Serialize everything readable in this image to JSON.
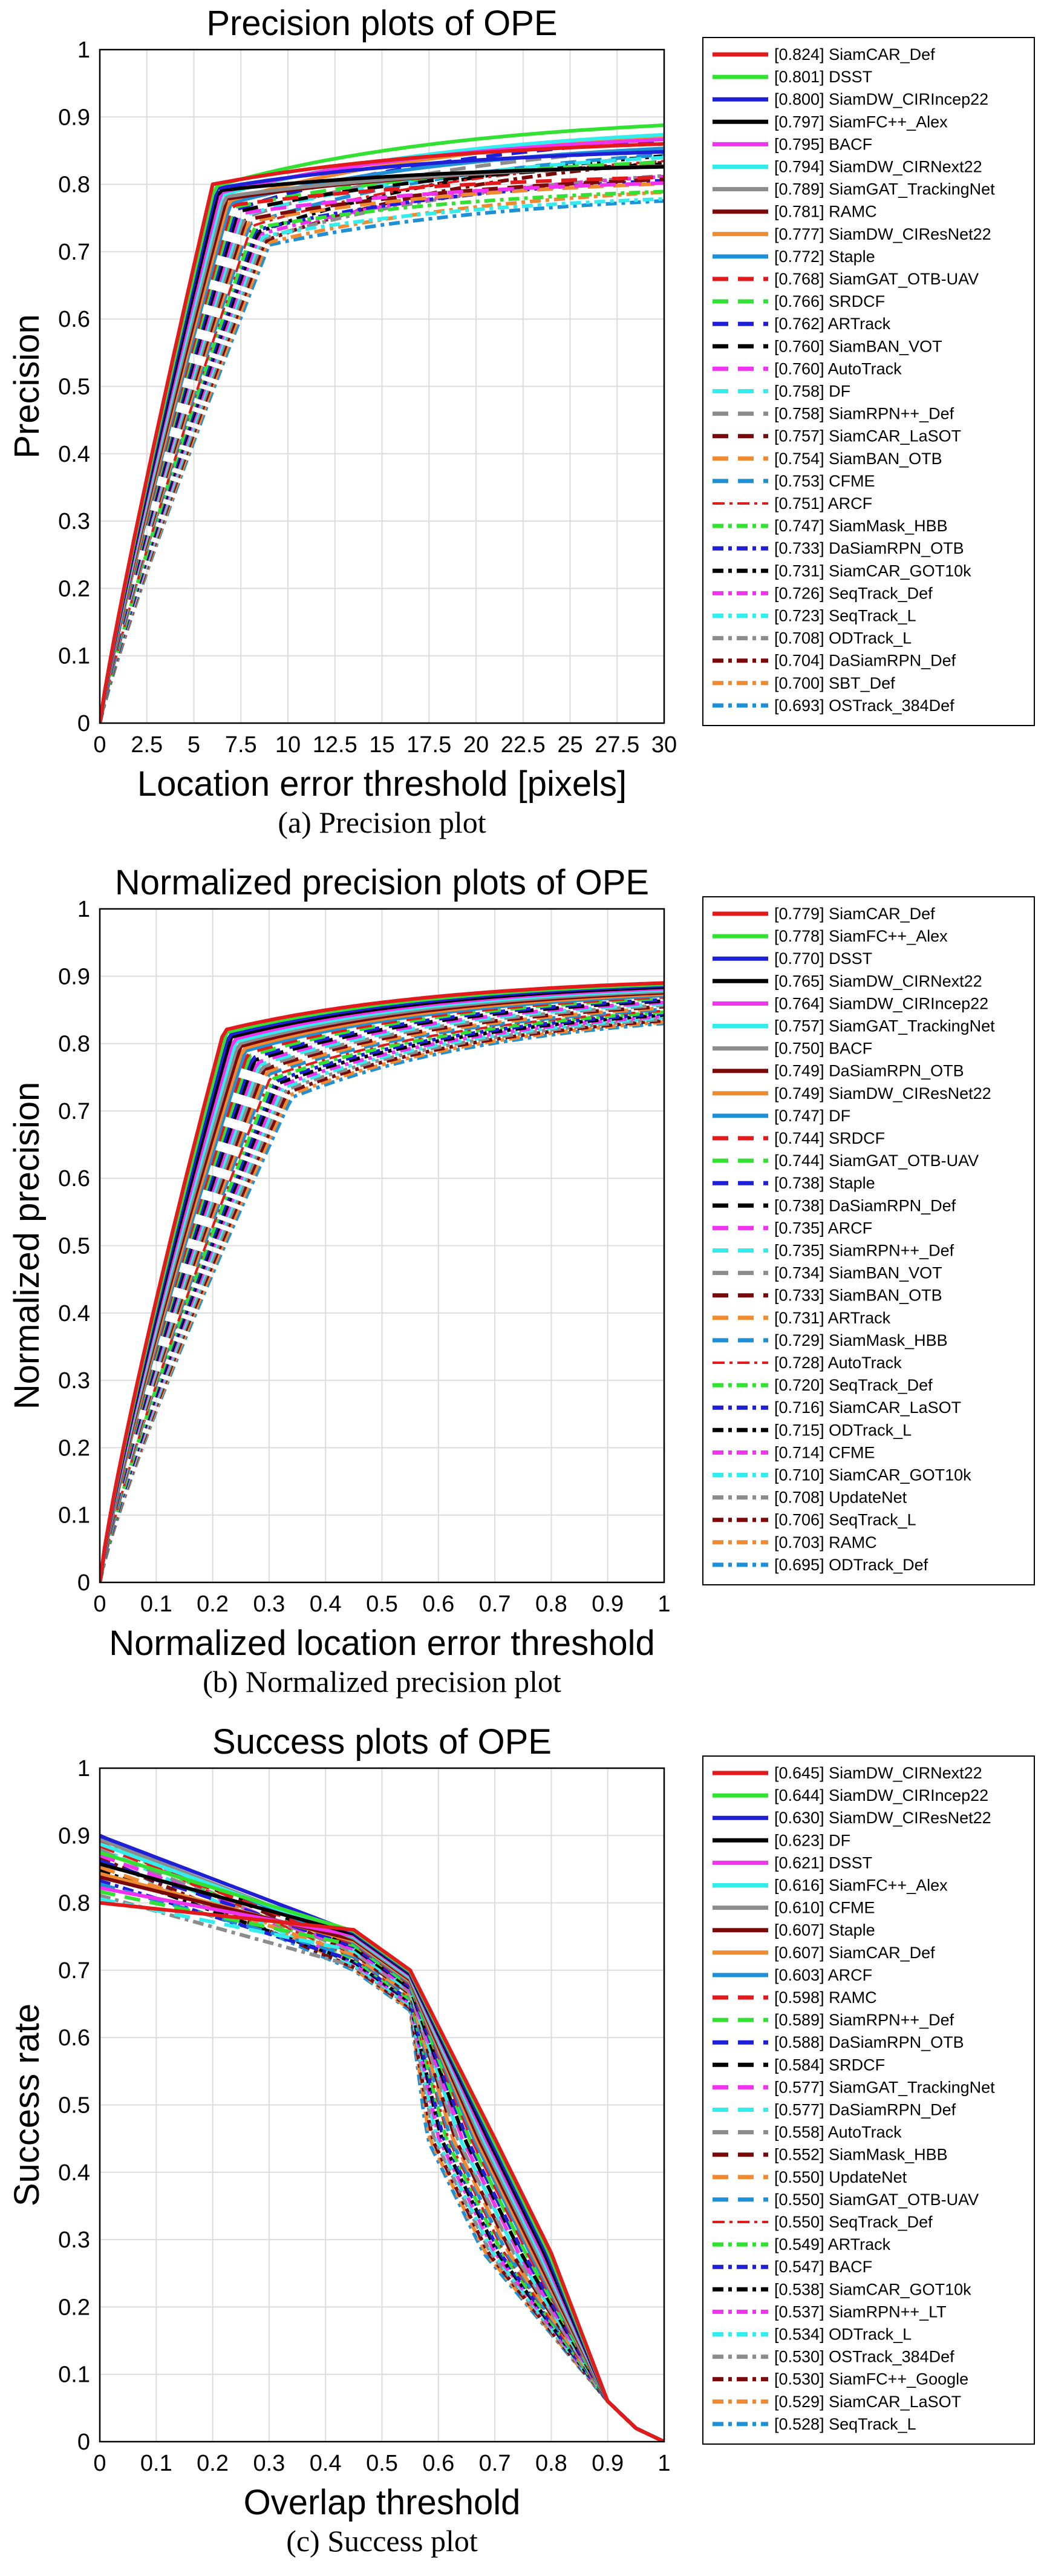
{
  "chart_data": [
    {
      "type": "line",
      "title": "Precision plots of OPE",
      "xlabel": "Location error threshold [pixels]",
      "ylabel": "Precision",
      "caption": "(a) Precision plot",
      "xlim": [
        0,
        30
      ],
      "ylim": [
        0,
        1
      ],
      "xticks": [
        "0",
        "2.5",
        "5",
        "7.5",
        "10",
        "12.5",
        "15",
        "17.5",
        "20",
        "22.5",
        "25",
        "27.5",
        "30"
      ],
      "yticks": [
        "0",
        "0.1",
        "0.2",
        "0.3",
        "0.4",
        "0.5",
        "0.6",
        "0.7",
        "0.8",
        "0.9",
        "1"
      ],
      "grid": true,
      "legend_position": "outside-right",
      "series": [
        {
          "legend": "[0.824] SiamCAR_Def",
          "score": 0.824,
          "color": "#e31a1c",
          "dash": "solid"
        },
        {
          "legend": "[0.801] DSST",
          "score": 0.801,
          "color": "#33e133",
          "dash": "solid"
        },
        {
          "legend": "[0.800] SiamDW_CIRIncep22",
          "score": 0.8,
          "color": "#1f1fd6",
          "dash": "solid"
        },
        {
          "legend": "[0.797] SiamFC++_Alex",
          "score": 0.797,
          "color": "#000000",
          "dash": "solid"
        },
        {
          "legend": "[0.795] BACF",
          "score": 0.795,
          "color": "#ef33ef",
          "dash": "solid"
        },
        {
          "legend": "[0.794] SiamDW_CIRNext22",
          "score": 0.794,
          "color": "#33eded",
          "dash": "solid"
        },
        {
          "legend": "[0.789] SiamGAT_TrackingNet",
          "score": 0.789,
          "color": "#8c8c8c",
          "dash": "solid"
        },
        {
          "legend": "[0.781] RAMC",
          "score": 0.781,
          "color": "#7a0a0a",
          "dash": "solid"
        },
        {
          "legend": "[0.777] SiamDW_CIResNet22",
          "score": 0.777,
          "color": "#f08a30",
          "dash": "solid"
        },
        {
          "legend": "[0.772] Staple",
          "score": 0.772,
          "color": "#1f8fd6",
          "dash": "solid"
        },
        {
          "legend": "[0.768] SiamGAT_OTB-UAV",
          "score": 0.768,
          "color": "#e31a1c",
          "dash": "dash"
        },
        {
          "legend": "[0.766] SRDCF",
          "score": 0.766,
          "color": "#33e133",
          "dash": "dash"
        },
        {
          "legend": "[0.762] ARTrack",
          "score": 0.762,
          "color": "#1f1fd6",
          "dash": "dash"
        },
        {
          "legend": "[0.760] SiamBAN_VOT",
          "score": 0.76,
          "color": "#000000",
          "dash": "dash"
        },
        {
          "legend": "[0.760] AutoTrack",
          "score": 0.76,
          "color": "#ef33ef",
          "dash": "dash"
        },
        {
          "legend": "[0.758] DF",
          "score": 0.758,
          "color": "#33eded",
          "dash": "dash"
        },
        {
          "legend": "[0.758] SiamRPN++_Def",
          "score": 0.758,
          "color": "#8c8c8c",
          "dash": "dash"
        },
        {
          "legend": "[0.757] SiamCAR_LaSOT",
          "score": 0.757,
          "color": "#7a0a0a",
          "dash": "dash"
        },
        {
          "legend": "[0.754] SiamBAN_OTB",
          "score": 0.754,
          "color": "#f08a30",
          "dash": "dash"
        },
        {
          "legend": "[0.753] CFME",
          "score": 0.753,
          "color": "#1f8fd6",
          "dash": "dash"
        },
        {
          "legend": "[0.751] ARCF",
          "score": 0.751,
          "color": "#e31a1c",
          "dash": "dashdot-thin"
        },
        {
          "legend": "[0.747] SiamMask_HBB",
          "score": 0.747,
          "color": "#33e133",
          "dash": "dashdot"
        },
        {
          "legend": "[0.733] DaSiamRPN_OTB",
          "score": 0.733,
          "color": "#1f1fd6",
          "dash": "dashdot"
        },
        {
          "legend": "[0.731] SiamCAR_GOT10k",
          "score": 0.731,
          "color": "#000000",
          "dash": "dashdot"
        },
        {
          "legend": "[0.726] SeqTrack_Def",
          "score": 0.726,
          "color": "#ef33ef",
          "dash": "dashdot"
        },
        {
          "legend": "[0.723] SeqTrack_L",
          "score": 0.723,
          "color": "#33eded",
          "dash": "dashdot"
        },
        {
          "legend": "[0.708] ODTrack_L",
          "score": 0.708,
          "color": "#8c8c8c",
          "dash": "dashdot"
        },
        {
          "legend": "[0.704] DaSiamRPN_Def",
          "score": 0.704,
          "color": "#7a0a0a",
          "dash": "dashdot"
        },
        {
          "legend": "[0.700] SBT_Def",
          "score": 0.7,
          "color": "#f08a30",
          "dash": "dashdot"
        },
        {
          "legend": "[0.693] OSTrack_384Def",
          "score": 0.693,
          "color": "#1f8fd6",
          "dash": "dashdot"
        }
      ]
    },
    {
      "type": "line",
      "title": "Normalized precision plots of OPE",
      "xlabel": "Normalized location error threshold",
      "ylabel": "Normalized precision",
      "caption": "(b) Normalized precision plot",
      "xlim": [
        0,
        1
      ],
      "ylim": [
        0,
        1
      ],
      "xticks": [
        "0",
        "0.1",
        "0.2",
        "0.3",
        "0.4",
        "0.5",
        "0.6",
        "0.7",
        "0.8",
        "0.9",
        "1"
      ],
      "yticks": [
        "0",
        "0.1",
        "0.2",
        "0.3",
        "0.4",
        "0.5",
        "0.6",
        "0.7",
        "0.8",
        "0.9",
        "1"
      ],
      "grid": true,
      "legend_position": "outside-right",
      "series": [
        {
          "legend": "[0.779] SiamCAR_Def",
          "score": 0.779,
          "color": "#e31a1c",
          "dash": "solid"
        },
        {
          "legend": "[0.778] SiamFC++_Alex",
          "score": 0.778,
          "color": "#33e133",
          "dash": "solid"
        },
        {
          "legend": "[0.770] DSST",
          "score": 0.77,
          "color": "#1f1fd6",
          "dash": "solid"
        },
        {
          "legend": "[0.765] SiamDW_CIRNext22",
          "score": 0.765,
          "color": "#000000",
          "dash": "solid"
        },
        {
          "legend": "[0.764] SiamDW_CIRIncep22",
          "score": 0.764,
          "color": "#ef33ef",
          "dash": "solid"
        },
        {
          "legend": "[0.757] SiamGAT_TrackingNet",
          "score": 0.757,
          "color": "#33eded",
          "dash": "solid"
        },
        {
          "legend": "[0.750] BACF",
          "score": 0.75,
          "color": "#8c8c8c",
          "dash": "solid"
        },
        {
          "legend": "[0.749] DaSiamRPN_OTB",
          "score": 0.749,
          "color": "#7a0a0a",
          "dash": "solid"
        },
        {
          "legend": "[0.749] SiamDW_CIResNet22",
          "score": 0.749,
          "color": "#f08a30",
          "dash": "solid"
        },
        {
          "legend": "[0.747] DF",
          "score": 0.747,
          "color": "#1f8fd6",
          "dash": "solid"
        },
        {
          "legend": "[0.744] SRDCF",
          "score": 0.744,
          "color": "#e31a1c",
          "dash": "dash"
        },
        {
          "legend": "[0.744] SiamGAT_OTB-UAV",
          "score": 0.744,
          "color": "#33e133",
          "dash": "dash"
        },
        {
          "legend": "[0.738] Staple",
          "score": 0.738,
          "color": "#1f1fd6",
          "dash": "dash"
        },
        {
          "legend": "[0.738] DaSiamRPN_Def",
          "score": 0.738,
          "color": "#000000",
          "dash": "dash"
        },
        {
          "legend": "[0.735] ARCF",
          "score": 0.735,
          "color": "#ef33ef",
          "dash": "dash"
        },
        {
          "legend": "[0.735] SiamRPN++_Def",
          "score": 0.735,
          "color": "#33eded",
          "dash": "dash"
        },
        {
          "legend": "[0.734] SiamBAN_VOT",
          "score": 0.734,
          "color": "#8c8c8c",
          "dash": "dash"
        },
        {
          "legend": "[0.733] SiamBAN_OTB",
          "score": 0.733,
          "color": "#7a0a0a",
          "dash": "dash"
        },
        {
          "legend": "[0.731] ARTrack",
          "score": 0.731,
          "color": "#f08a30",
          "dash": "dash"
        },
        {
          "legend": "[0.729] SiamMask_HBB",
          "score": 0.729,
          "color": "#1f8fd6",
          "dash": "dash"
        },
        {
          "legend": "[0.728] AutoTrack",
          "score": 0.728,
          "color": "#e31a1c",
          "dash": "dashdot-thin"
        },
        {
          "legend": "[0.720] SeqTrack_Def",
          "score": 0.72,
          "color": "#33e133",
          "dash": "dashdot"
        },
        {
          "legend": "[0.716] SiamCAR_LaSOT",
          "score": 0.716,
          "color": "#1f1fd6",
          "dash": "dashdot"
        },
        {
          "legend": "[0.715] ODTrack_L",
          "score": 0.715,
          "color": "#000000",
          "dash": "dashdot"
        },
        {
          "legend": "[0.714] CFME",
          "score": 0.714,
          "color": "#ef33ef",
          "dash": "dashdot"
        },
        {
          "legend": "[0.710] SiamCAR_GOT10k",
          "score": 0.71,
          "color": "#33eded",
          "dash": "dashdot"
        },
        {
          "legend": "[0.708] UpdateNet",
          "score": 0.708,
          "color": "#8c8c8c",
          "dash": "dashdot"
        },
        {
          "legend": "[0.706] SeqTrack_L",
          "score": 0.706,
          "color": "#7a0a0a",
          "dash": "dashdot"
        },
        {
          "legend": "[0.703] RAMC",
          "score": 0.703,
          "color": "#f08a30",
          "dash": "dashdot"
        },
        {
          "legend": "[0.695] ODTrack_Def",
          "score": 0.695,
          "color": "#1f8fd6",
          "dash": "dashdot"
        }
      ]
    },
    {
      "type": "line",
      "title": "Success plots of OPE",
      "xlabel": "Overlap threshold",
      "ylabel": "Success rate",
      "caption": "(c) Success plot",
      "xlim": [
        0,
        1
      ],
      "ylim": [
        0,
        1
      ],
      "xticks": [
        "0",
        "0.1",
        "0.2",
        "0.3",
        "0.4",
        "0.5",
        "0.6",
        "0.7",
        "0.8",
        "0.9",
        "1"
      ],
      "yticks": [
        "0",
        "0.1",
        "0.2",
        "0.3",
        "0.4",
        "0.5",
        "0.6",
        "0.7",
        "0.8",
        "0.9",
        "1"
      ],
      "grid": true,
      "legend_position": "outside-right",
      "series": [
        {
          "legend": "[0.645] SiamDW_CIRNext22",
          "score": 0.645,
          "color": "#e31a1c",
          "dash": "solid"
        },
        {
          "legend": "[0.644] SiamDW_CIRIncep22",
          "score": 0.644,
          "color": "#33e133",
          "dash": "solid"
        },
        {
          "legend": "[0.630] SiamDW_CIResNet22",
          "score": 0.63,
          "color": "#1f1fd6",
          "dash": "solid"
        },
        {
          "legend": "[0.623] DF",
          "score": 0.623,
          "color": "#000000",
          "dash": "solid"
        },
        {
          "legend": "[0.621] DSST",
          "score": 0.621,
          "color": "#ef33ef",
          "dash": "solid"
        },
        {
          "legend": "[0.616] SiamFC++_Alex",
          "score": 0.616,
          "color": "#33eded",
          "dash": "solid"
        },
        {
          "legend": "[0.610] CFME",
          "score": 0.61,
          "color": "#8c8c8c",
          "dash": "solid"
        },
        {
          "legend": "[0.607] Staple",
          "score": 0.607,
          "color": "#7a0a0a",
          "dash": "solid"
        },
        {
          "legend": "[0.607] SiamCAR_Def",
          "score": 0.607,
          "color": "#f08a30",
          "dash": "solid"
        },
        {
          "legend": "[0.603] ARCF",
          "score": 0.603,
          "color": "#1f8fd6",
          "dash": "solid"
        },
        {
          "legend": "[0.598] RAMC",
          "score": 0.598,
          "color": "#e31a1c",
          "dash": "dash"
        },
        {
          "legend": "[0.589] SiamRPN++_Def",
          "score": 0.589,
          "color": "#33e133",
          "dash": "dash"
        },
        {
          "legend": "[0.588] DaSiamRPN_OTB",
          "score": 0.588,
          "color": "#1f1fd6",
          "dash": "dash"
        },
        {
          "legend": "[0.584] SRDCF",
          "score": 0.584,
          "color": "#000000",
          "dash": "dash"
        },
        {
          "legend": "[0.577] SiamGAT_TrackingNet",
          "score": 0.577,
          "color": "#ef33ef",
          "dash": "dash"
        },
        {
          "legend": "[0.577] DaSiamRPN_Def",
          "score": 0.577,
          "color": "#33eded",
          "dash": "dash"
        },
        {
          "legend": "[0.558] AutoTrack",
          "score": 0.558,
          "color": "#8c8c8c",
          "dash": "dash"
        },
        {
          "legend": "[0.552] SiamMask_HBB",
          "score": 0.552,
          "color": "#7a0a0a",
          "dash": "dash"
        },
        {
          "legend": "[0.550] UpdateNet",
          "score": 0.55,
          "color": "#f08a30",
          "dash": "dash"
        },
        {
          "legend": "[0.550] SiamGAT_OTB-UAV",
          "score": 0.55,
          "color": "#1f8fd6",
          "dash": "dash"
        },
        {
          "legend": "[0.550] SeqTrack_Def",
          "score": 0.55,
          "color": "#e31a1c",
          "dash": "dashdot-thin"
        },
        {
          "legend": "[0.549] ARTrack",
          "score": 0.549,
          "color": "#33e133",
          "dash": "dashdot"
        },
        {
          "legend": "[0.547] BACF",
          "score": 0.547,
          "color": "#1f1fd6",
          "dash": "dashdot"
        },
        {
          "legend": "[0.538] SiamCAR_GOT10k",
          "score": 0.538,
          "color": "#000000",
          "dash": "dashdot"
        },
        {
          "legend": "[0.537] SiamRPN++_LT",
          "score": 0.537,
          "color": "#ef33ef",
          "dash": "dashdot"
        },
        {
          "legend": "[0.534] ODTrack_L",
          "score": 0.534,
          "color": "#33eded",
          "dash": "dashdot"
        },
        {
          "legend": "[0.530] OSTrack_384Def",
          "score": 0.53,
          "color": "#8c8c8c",
          "dash": "dashdot"
        },
        {
          "legend": "[0.530] SiamFC++_Google",
          "score": 0.53,
          "color": "#7a0a0a",
          "dash": "dashdot"
        },
        {
          "legend": "[0.529] SiamCAR_LaSOT",
          "score": 0.529,
          "color": "#f08a30",
          "dash": "dashdot"
        },
        {
          "legend": "[0.528] SeqTrack_L",
          "score": 0.528,
          "color": "#1f8fd6",
          "dash": "dashdot"
        }
      ]
    }
  ]
}
